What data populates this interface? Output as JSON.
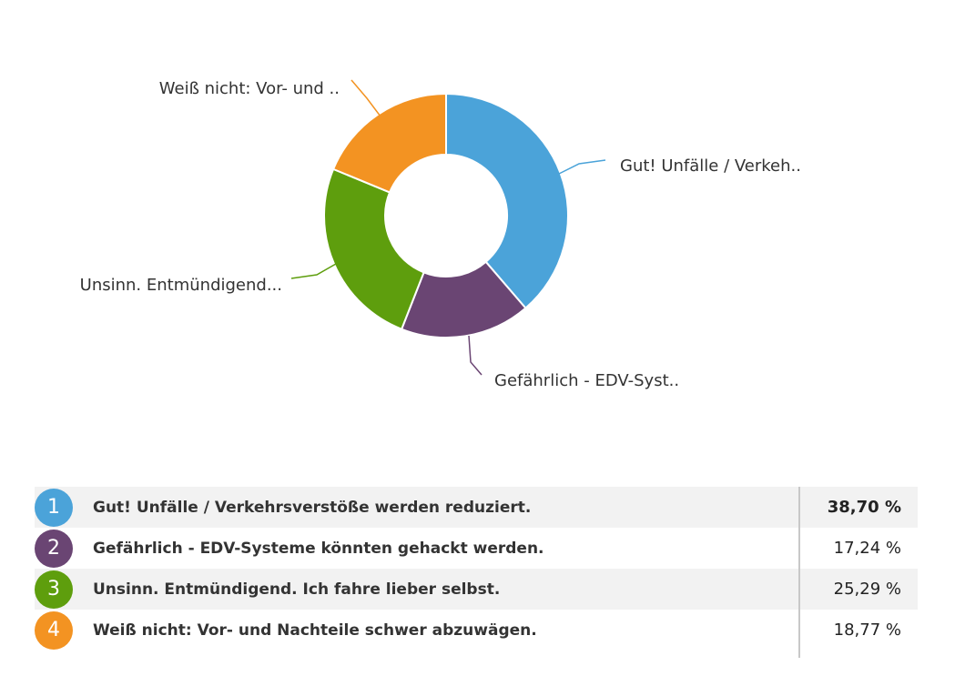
{
  "chart_data": {
    "type": "pie",
    "donut": true,
    "title": "",
    "slices": [
      {
        "rank": "1",
        "label": "Gut! Unfälle / Verkehrsverstöße werden reduziert.",
        "short_label": "Gut! Unfälle / Verkeh..",
        "value": 38.7,
        "value_text": "38,70 %",
        "color": "#4ba3d9"
      },
      {
        "rank": "2",
        "label": "Gefährlich - EDV-Systeme könnten gehackt werden.",
        "short_label": "Gefährlich - EDV-Syst..",
        "value": 17.24,
        "value_text": "17,24 %",
        "color": "#6a4573"
      },
      {
        "rank": "3",
        "label": "Unsinn. Entmündigend. Ich fahre lieber selbst.",
        "short_label": "Unsinn. Entmündigend...",
        "value": 25.29,
        "value_text": "25,29 %",
        "color": "#5e9e0d"
      },
      {
        "rank": "4",
        "label": "Weiß nicht: Vor- und Nachteile schwer abzuwägen.",
        "short_label": "Weiß nicht: Vor- und ..",
        "value": 18.77,
        "value_text": "18,77 %",
        "color": "#f39322"
      }
    ],
    "legend": "table-below"
  }
}
